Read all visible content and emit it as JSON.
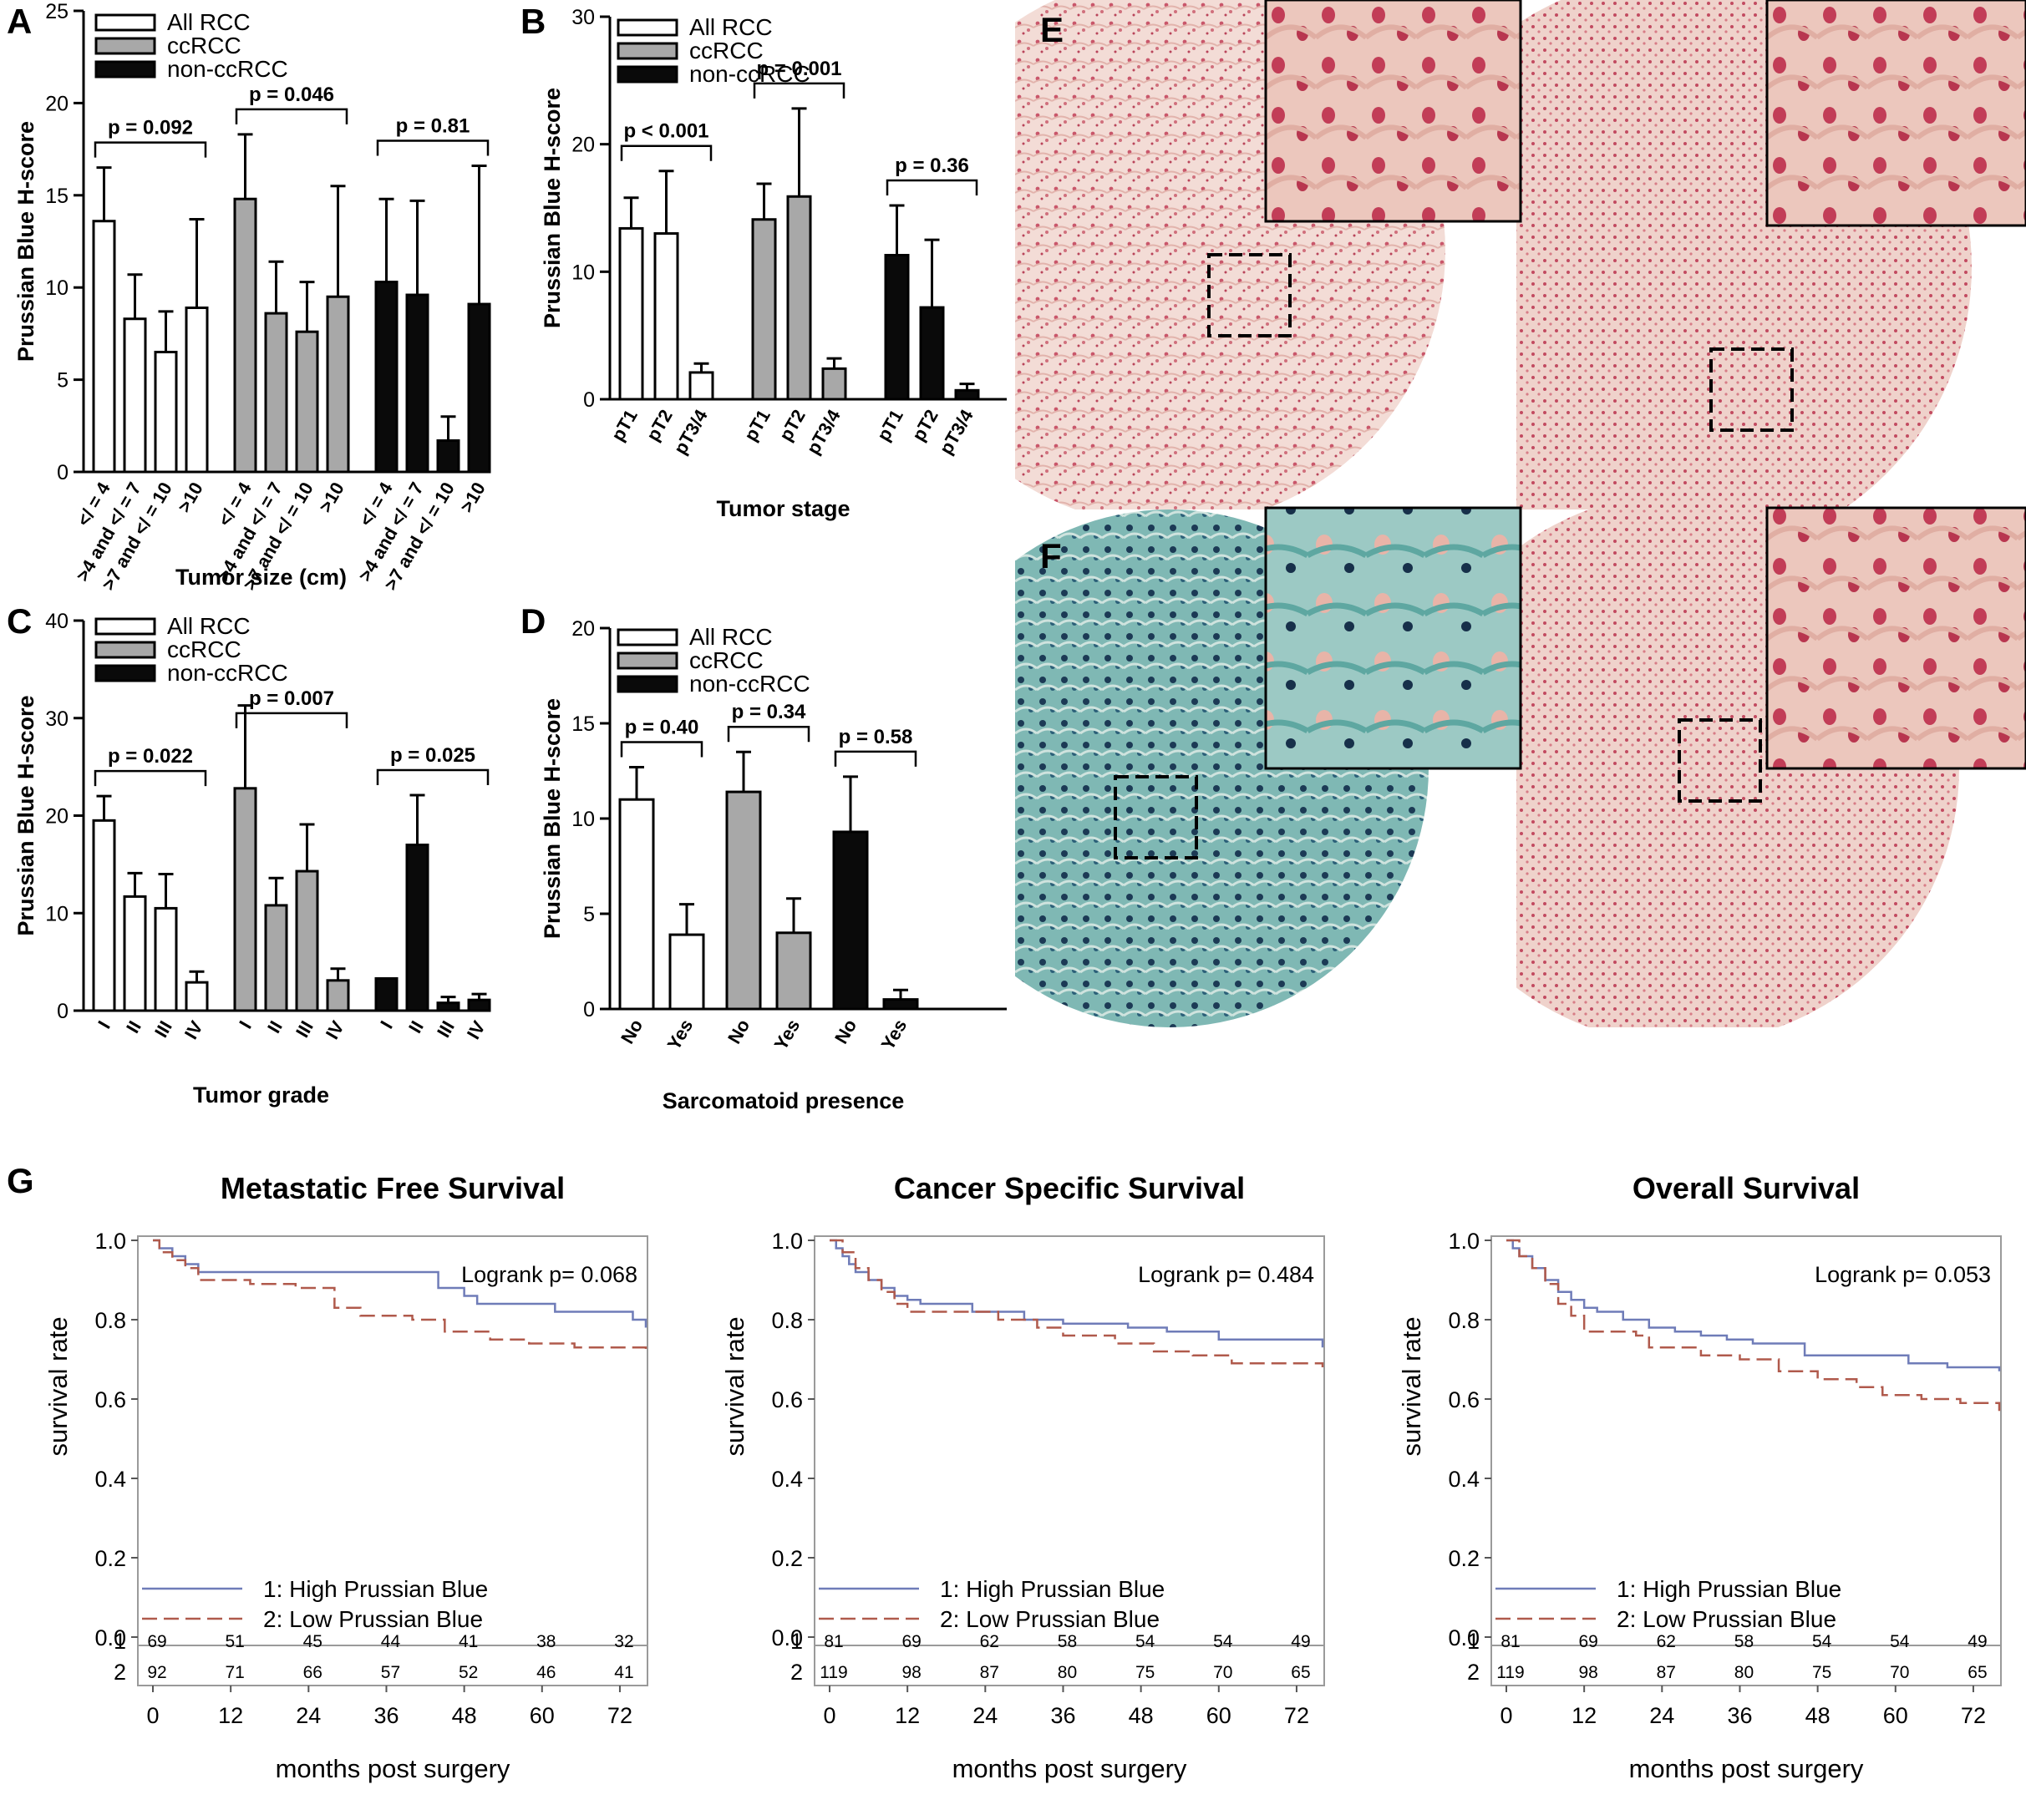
{
  "colors": {
    "all": "#ffffff",
    "cc": "#a8a8a8",
    "non": "#0a0a0a",
    "high": "#6f7cb8",
    "low": "#b05a4c"
  },
  "panels": {
    "A": {
      "letter": "A",
      "ylabel": "Prussian Blue H-score",
      "xlabel": "Tumor size (cm)",
      "ymax": 25,
      "yticks": [
        0,
        5,
        10,
        15,
        20,
        25
      ],
      "legend": [
        "All RCC",
        "ccRCC",
        "non-ccRCC"
      ],
      "categories": [
        "</ = 4",
        ">4 and </ = 7",
        ">7 and </ = 10",
        ">10"
      ],
      "groups": [
        {
          "name": "All RCC",
          "values": [
            13.6,
            8.3,
            6.5,
            8.9
          ],
          "errors": [
            2.9,
            2.4,
            2.2,
            4.8
          ],
          "p": "p = 0.092"
        },
        {
          "name": "ccRCC",
          "values": [
            14.8,
            8.6,
            7.6,
            9.5
          ],
          "errors": [
            3.5,
            2.8,
            2.7,
            6.0
          ],
          "p": "p = 0.046"
        },
        {
          "name": "non-ccRCC",
          "values": [
            10.3,
            9.6,
            1.7,
            9.1
          ],
          "errors": [
            4.5,
            5.1,
            1.3,
            7.5
          ],
          "p": "p = 0.81"
        }
      ]
    },
    "B": {
      "letter": "B",
      "ylabel": "Prussian Blue H-score",
      "xlabel": "Tumor stage",
      "ymax": 30,
      "yticks": [
        0,
        10,
        20,
        30
      ],
      "legend": [
        "All RCC",
        "ccRCC",
        "non-ccRCC"
      ],
      "categories": [
        "pT1",
        "pT2",
        "pT3/4"
      ],
      "groups": [
        {
          "name": "All RCC",
          "values": [
            13.4,
            13.0,
            2.1
          ],
          "errors": [
            2.4,
            4.9,
            0.7
          ],
          "p": "p < 0.001"
        },
        {
          "name": "ccRCC",
          "values": [
            14.1,
            15.9,
            2.4
          ],
          "errors": [
            2.8,
            6.9,
            0.8
          ],
          "p": "p = 0.001"
        },
        {
          "name": "non-ccRCC",
          "values": [
            11.3,
            7.2,
            0.7
          ],
          "errors": [
            3.9,
            5.3,
            0.5
          ],
          "p": "p = 0.36"
        }
      ]
    },
    "C": {
      "letter": "C",
      "ylabel": "Prussian Blue H-score",
      "xlabel": "Tumor grade",
      "ymax": 40,
      "yticks": [
        0,
        10,
        20,
        30,
        40
      ],
      "legend": [
        "All RCC",
        "ccRCC",
        "non-ccRCC"
      ],
      "categories": [
        "I",
        "II",
        "III",
        "IV"
      ],
      "groups": [
        {
          "name": "All RCC",
          "values": [
            19.5,
            11.7,
            10.5,
            2.9
          ],
          "errors": [
            2.5,
            2.4,
            3.5,
            1.1
          ],
          "p": "p = 0.022"
        },
        {
          "name": "ccRCC",
          "values": [
            22.8,
            10.8,
            14.3,
            3.1
          ],
          "errors": [
            8.5,
            2.8,
            4.8,
            1.2
          ],
          "p": "p = 0.007"
        },
        {
          "name": "non-ccRCC",
          "values": [
            3.3,
            17.0,
            0.8,
            1.1
          ],
          "errors": [
            0,
            5.1,
            0.6,
            0.6
          ],
          "p": "p = 0.025"
        }
      ]
    },
    "D": {
      "letter": "D",
      "ylabel": "Prussian Blue H-score",
      "xlabel": "Sarcomatoid presence",
      "ymax": 20,
      "yticks": [
        0,
        5,
        10,
        15,
        20
      ],
      "legend": [
        "All RCC",
        "ccRCC",
        "non-ccRCC"
      ],
      "categories": [
        "No",
        "Yes"
      ],
      "groups": [
        {
          "name": "All RCC",
          "values": [
            11.0,
            3.9
          ],
          "errors": [
            1.7,
            1.6
          ],
          "p": "p = 0.40"
        },
        {
          "name": "ccRCC",
          "values": [
            11.4,
            4.0
          ],
          "errors": [
            2.1,
            1.8
          ],
          "p": "p = 0.34"
        },
        {
          "name": "non-ccRCC",
          "values": [
            9.3,
            0.5
          ],
          "errors": [
            2.9,
            0.5
          ],
          "p": "p = 0.58"
        }
      ]
    },
    "E": {
      "letter": "E"
    },
    "F": {
      "letter": "F"
    },
    "G": {
      "letter": "G",
      "legend": [
        "1: High Prussian Blue",
        "2: Low Prussian Blue"
      ],
      "ylabel": "survival rate",
      "xlabel": "months post surgery",
      "yticks": [
        "0.0",
        "0.2",
        "0.4",
        "0.6",
        "0.8",
        "1.0"
      ],
      "xticks": [
        0,
        12,
        24,
        36,
        48,
        60,
        72
      ],
      "plots": [
        {
          "title": "Metastatic Free Survival",
          "logrank": "Logrank p= 0.068",
          "risk1": [
            69,
            51,
            45,
            44,
            41,
            38,
            32
          ],
          "risk2": [
            92,
            71,
            66,
            57,
            52,
            46,
            41
          ],
          "high": [
            [
              0,
              1.0
            ],
            [
              1,
              0.98
            ],
            [
              3,
              0.96
            ],
            [
              5,
              0.94
            ],
            [
              7,
              0.92
            ],
            [
              43,
              0.92
            ],
            [
              44,
              0.88
            ],
            [
              48,
              0.86
            ],
            [
              50,
              0.84
            ],
            [
              62,
              0.82
            ],
            [
              74,
              0.8
            ],
            [
              76,
              0.78
            ]
          ],
          "low": [
            [
              0,
              1.0
            ],
            [
              1,
              0.97
            ],
            [
              3,
              0.95
            ],
            [
              5,
              0.93
            ],
            [
              7,
              0.9
            ],
            [
              15,
              0.89
            ],
            [
              22,
              0.88
            ],
            [
              28,
              0.83
            ],
            [
              32,
              0.81
            ],
            [
              40,
              0.8
            ],
            [
              45,
              0.77
            ],
            [
              52,
              0.75
            ],
            [
              58,
              0.74
            ],
            [
              65,
              0.73
            ],
            [
              75,
              0.73
            ],
            [
              76,
              0.71
            ]
          ]
        },
        {
          "title": "Cancer Specific Survival",
          "logrank": "Logrank p= 0.484",
          "risk1": [
            81,
            69,
            62,
            58,
            54,
            54,
            49
          ],
          "risk2": [
            119,
            98,
            87,
            80,
            75,
            70,
            65
          ],
          "high": [
            [
              0,
              1.0
            ],
            [
              1,
              0.98
            ],
            [
              2,
              0.96
            ],
            [
              3,
              0.94
            ],
            [
              4,
              0.92
            ],
            [
              6,
              0.9
            ],
            [
              8,
              0.88
            ],
            [
              10,
              0.86
            ],
            [
              12,
              0.85
            ],
            [
              14,
              0.84
            ],
            [
              22,
              0.82
            ],
            [
              30,
              0.8
            ],
            [
              36,
              0.79
            ],
            [
              46,
              0.78
            ],
            [
              52,
              0.77
            ],
            [
              60,
              0.75
            ],
            [
              72,
              0.75
            ],
            [
              76,
              0.73
            ]
          ],
          "low": [
            [
              0,
              1.0
            ],
            [
              2,
              0.97
            ],
            [
              4,
              0.93
            ],
            [
              6,
              0.9
            ],
            [
              8,
              0.87
            ],
            [
              10,
              0.84
            ],
            [
              12,
              0.82
            ],
            [
              22,
              0.82
            ],
            [
              26,
              0.8
            ],
            [
              32,
              0.78
            ],
            [
              36,
              0.76
            ],
            [
              44,
              0.74
            ],
            [
              50,
              0.72
            ],
            [
              56,
              0.71
            ],
            [
              62,
              0.69
            ],
            [
              72,
              0.69
            ],
            [
              76,
              0.68
            ]
          ]
        },
        {
          "title": "Overall Survival",
          "logrank": "Logrank p= 0.053",
          "risk1": [
            81,
            69,
            62,
            58,
            54,
            54,
            49
          ],
          "risk2": [
            119,
            98,
            87,
            80,
            75,
            70,
            65
          ],
          "high": [
            [
              0,
              1.0
            ],
            [
              1,
              0.98
            ],
            [
              2,
              0.96
            ],
            [
              4,
              0.93
            ],
            [
              6,
              0.9
            ],
            [
              8,
              0.87
            ],
            [
              10,
              0.85
            ],
            [
              12,
              0.83
            ],
            [
              14,
              0.82
            ],
            [
              18,
              0.8
            ],
            [
              22,
              0.78
            ],
            [
              26,
              0.77
            ],
            [
              30,
              0.76
            ],
            [
              34,
              0.75
            ],
            [
              38,
              0.74
            ],
            [
              46,
              0.71
            ],
            [
              60,
              0.71
            ],
            [
              62,
              0.69
            ],
            [
              68,
              0.68
            ],
            [
              76,
              0.67
            ]
          ],
          "low": [
            [
              0,
              1.0
            ],
            [
              2,
              0.96
            ],
            [
              4,
              0.93
            ],
            [
              6,
              0.89
            ],
            [
              8,
              0.84
            ],
            [
              10,
              0.81
            ],
            [
              12,
              0.77
            ],
            [
              20,
              0.76
            ],
            [
              22,
              0.73
            ],
            [
              30,
              0.71
            ],
            [
              36,
              0.7
            ],
            [
              42,
              0.67
            ],
            [
              48,
              0.65
            ],
            [
              54,
              0.63
            ],
            [
              58,
              0.61
            ],
            [
              64,
              0.6
            ],
            [
              70,
              0.59
            ],
            [
              76,
              0.57
            ]
          ]
        }
      ]
    }
  },
  "chart_data": [
    {
      "type": "bar",
      "title": "A",
      "xlabel": "Tumor size (cm)",
      "ylabel": "Prussian Blue H-score",
      "ylim": [
        0,
        25
      ],
      "categories": [
        "</ = 4",
        ">4 and </ = 7",
        ">7 and </ = 10",
        ">10"
      ],
      "series": [
        {
          "name": "All RCC",
          "values": [
            13.6,
            8.3,
            6.5,
            8.9
          ]
        },
        {
          "name": "ccRCC",
          "values": [
            14.8,
            8.6,
            7.6,
            9.5
          ]
        },
        {
          "name": "non-ccRCC",
          "values": [
            10.3,
            9.6,
            1.7,
            9.1
          ]
        }
      ]
    },
    {
      "type": "bar",
      "title": "B",
      "xlabel": "Tumor stage",
      "ylabel": "Prussian Blue H-score",
      "ylim": [
        0,
        30
      ],
      "categories": [
        "pT1",
        "pT2",
        "pT3/4"
      ],
      "series": [
        {
          "name": "All RCC",
          "values": [
            13.4,
            13.0,
            2.1
          ]
        },
        {
          "name": "ccRCC",
          "values": [
            14.1,
            15.9,
            2.4
          ]
        },
        {
          "name": "non-ccRCC",
          "values": [
            11.3,
            7.2,
            0.7
          ]
        }
      ]
    },
    {
      "type": "bar",
      "title": "C",
      "xlabel": "Tumor grade",
      "ylabel": "Prussian Blue H-score",
      "ylim": [
        0,
        40
      ],
      "categories": [
        "I",
        "II",
        "III",
        "IV"
      ],
      "series": [
        {
          "name": "All RCC",
          "values": [
            19.5,
            11.7,
            10.5,
            2.9
          ]
        },
        {
          "name": "ccRCC",
          "values": [
            22.8,
            10.8,
            14.3,
            3.1
          ]
        },
        {
          "name": "non-ccRCC",
          "values": [
            3.3,
            17.0,
            0.8,
            1.1
          ]
        }
      ]
    },
    {
      "type": "bar",
      "title": "D",
      "xlabel": "Sarcomatoid presence",
      "ylabel": "Prussian Blue H-score",
      "ylim": [
        0,
        20
      ],
      "categories": [
        "No",
        "Yes"
      ],
      "series": [
        {
          "name": "All RCC",
          "values": [
            11.0,
            3.9
          ]
        },
        {
          "name": "ccRCC",
          "values": [
            11.4,
            4.0
          ]
        },
        {
          "name": "non-ccRCC",
          "values": [
            9.3,
            0.5
          ]
        }
      ]
    },
    {
      "type": "line",
      "title": "Metastatic Free Survival",
      "xlabel": "months post surgery",
      "ylabel": "survival rate",
      "ylim": [
        0,
        1
      ],
      "xlim": [
        0,
        76
      ]
    },
    {
      "type": "line",
      "title": "Cancer Specific Survival",
      "xlabel": "months post surgery",
      "ylabel": "survival rate",
      "ylim": [
        0,
        1
      ],
      "xlim": [
        0,
        76
      ]
    },
    {
      "type": "line",
      "title": "Overall Survival",
      "xlabel": "months post surgery",
      "ylabel": "survival rate",
      "ylim": [
        0,
        1
      ],
      "xlim": [
        0,
        76
      ]
    }
  ]
}
